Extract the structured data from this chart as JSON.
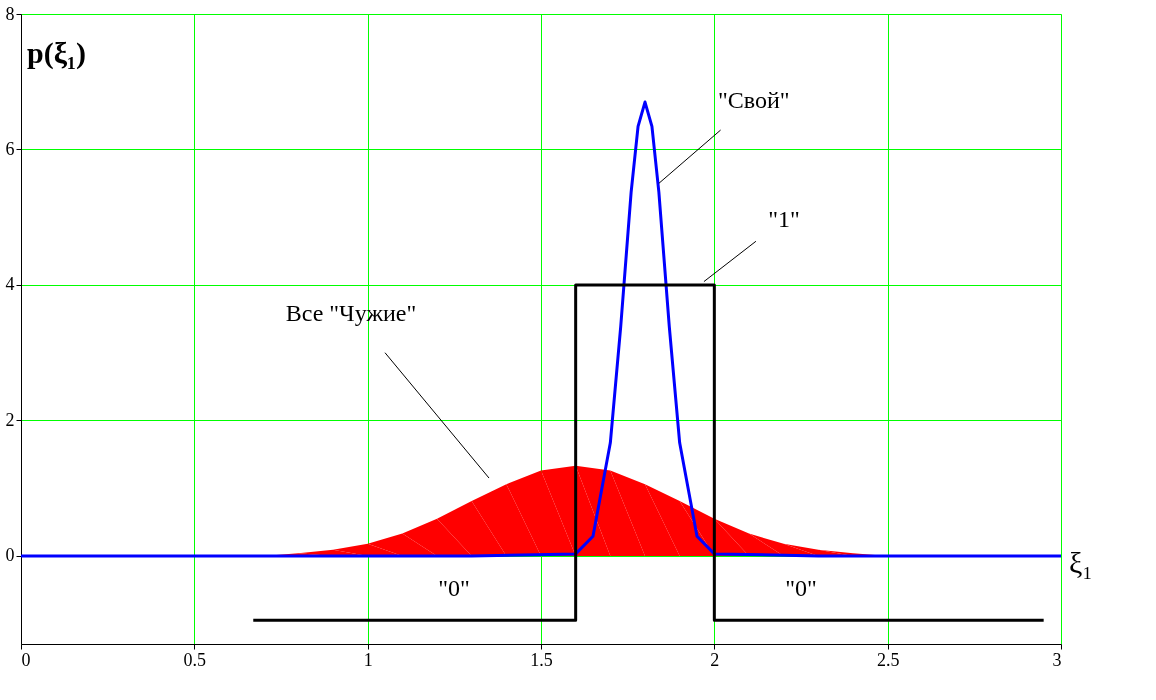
{
  "chart_data": {
    "type": "line",
    "xlabel": "ξ₁",
    "ylabel": "p(ξ₁)",
    "xlim": [
      0,
      3
    ],
    "ylim": [
      -1.3,
      8
    ],
    "xticks": [
      0,
      0.5,
      1,
      1.5,
      2,
      2.5,
      3
    ],
    "yticks": [
      0,
      2,
      4,
      6,
      8
    ],
    "grid": true,
    "marker": "none",
    "line_style": "solid",
    "series": [
      {
        "type": "area",
        "color": "#ff0000",
        "x": [
          0,
          0.7,
          0.8,
          0.9,
          1.0,
          1.1,
          1.2,
          1.3,
          1.4,
          1.5,
          1.6,
          1.7,
          1.8,
          1.9,
          2.0,
          2.1,
          2.2,
          2.3,
          2.4,
          2.5,
          3
        ],
        "values": [
          0,
          0,
          0.04,
          0.09,
          0.18,
          0.33,
          0.55,
          0.81,
          1.06,
          1.26,
          1.33,
          1.26,
          1.06,
          0.81,
          0.55,
          0.33,
          0.18,
          0.09,
          0.04,
          0,
          0
        ]
      },
      {
        "color": "#0000ff",
        "x": [
          0,
          1.3,
          1.6,
          1.65,
          1.7,
          1.73,
          1.76,
          1.78,
          1.8,
          1.82,
          1.84,
          1.87,
          1.9,
          1.95,
          2.0,
          2.3,
          3
        ],
        "values": [
          0,
          0,
          0.03,
          0.29,
          1.67,
          3.39,
          5.37,
          6.34,
          6.7,
          6.34,
          5.37,
          3.39,
          1.67,
          0.29,
          0.03,
          0,
          0
        ]
      },
      {
        "color": "#000000",
        "x": [
          0.67,
          1.6,
          1.6,
          2.0,
          2.0,
          2.95
        ],
        "values": [
          -0.95,
          -0.95,
          4,
          4,
          -0.95,
          -0.95
        ]
      }
    ],
    "annotations": [
      {
        "text": "\"Свой\"",
        "x": 1.84,
        "y": 5.5
      },
      {
        "text": "\"1\"",
        "x": 1.97,
        "y": 4.05
      },
      "Все \"Чужие\"",
      "\"0\"",
      "\"0\""
    ]
  }
}
